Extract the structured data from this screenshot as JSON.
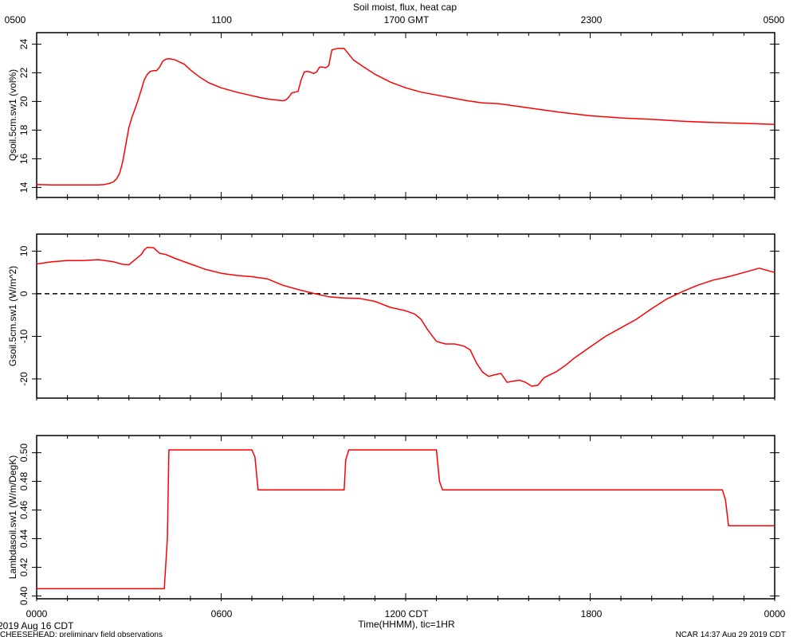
{
  "title": "Soil moist, flux, heat cap",
  "top_axis": {
    "labels": [
      "0500",
      "1100",
      "1700 GMT",
      "2300",
      "0500"
    ],
    "positions_hours": [
      0,
      6,
      12,
      18,
      24
    ]
  },
  "bottom_axis": {
    "labels": [
      "0000",
      "0600",
      "1200 CDT",
      "1800",
      "0000"
    ],
    "positions_hours": [
      0,
      6,
      12,
      18,
      24
    ],
    "xlabel": "Time(HHMM), tic=1HR"
  },
  "footer": {
    "date": "2019 Aug 16 CDT",
    "project": "CHEESEHEAD: preliminary field observations",
    "stamp": "NCAR 14:37 Aug 29 2019 CDT"
  },
  "colors": {
    "series": "#ff0000",
    "axis": "#000000",
    "zero_line": "#000000"
  },
  "chart_data": [
    {
      "type": "line",
      "ylabel": "Qsoil.5cm.sw1 (vol%)",
      "ylim": [
        13.3,
        24.8
      ],
      "yticks": [
        14,
        16,
        18,
        20,
        22,
        24
      ],
      "xlim": [
        0,
        24
      ],
      "series": [
        {
          "x": [
            0,
            0.5,
            1,
            1.5,
            2,
            2.1,
            2.2,
            2.4,
            2.5,
            2.6,
            2.7,
            2.8,
            2.9,
            3.0,
            3.1,
            3.2,
            3.3,
            3.4,
            3.5,
            3.6,
            3.7,
            3.8,
            3.9,
            4.0,
            4.1,
            4.2,
            4.3,
            4.4,
            4.5,
            4.6,
            4.7,
            4.8,
            5.0,
            5.3,
            5.6,
            6.0,
            6.5,
            7.0,
            7.3,
            7.6,
            7.8,
            8.0,
            8.1,
            8.2,
            8.3,
            8.4,
            8.5,
            8.6,
            8.7,
            8.8,
            8.9,
            9.0,
            9.1,
            9.2,
            9.3,
            9.4,
            9.5,
            9.6,
            9.8,
            10.0,
            10.3,
            10.6,
            11.0,
            11.5,
            12.0,
            12.5,
            13.0,
            13.5,
            14.0,
            14.5,
            15.0,
            15.5,
            16.0,
            17.0,
            18.0,
            19.0,
            20.0,
            21.0,
            22.0,
            23.0,
            24.0
          ],
          "values": [
            14.2,
            14.18,
            14.17,
            14.17,
            14.18,
            14.19,
            14.2,
            14.3,
            14.4,
            14.6,
            15.0,
            15.8,
            17.0,
            18.2,
            18.9,
            19.5,
            20.1,
            20.8,
            21.5,
            21.9,
            22.1,
            22.15,
            22.15,
            22.4,
            22.8,
            22.95,
            22.98,
            22.95,
            22.9,
            22.8,
            22.7,
            22.6,
            22.2,
            21.7,
            21.3,
            20.95,
            20.65,
            20.4,
            20.25,
            20.15,
            20.1,
            20.05,
            20.1,
            20.3,
            20.6,
            20.65,
            20.7,
            21.5,
            22.05,
            22.1,
            22.05,
            21.95,
            22.05,
            22.4,
            22.4,
            22.35,
            22.5,
            23.6,
            23.7,
            23.7,
            22.9,
            22.45,
            21.9,
            21.35,
            20.95,
            20.65,
            20.45,
            20.25,
            20.05,
            19.9,
            19.85,
            19.7,
            19.55,
            19.25,
            19.0,
            18.85,
            18.75,
            18.62,
            18.53,
            18.47,
            18.4
          ]
        }
      ]
    },
    {
      "type": "line",
      "ylabel": "Gsoil.5cm.sw1 (W/m^2)",
      "ylim": [
        -24.5,
        14
      ],
      "yticks": [
        10,
        0,
        -10,
        -20
      ],
      "xlim": [
        0,
        24
      ],
      "zero_line": true,
      "series": [
        {
          "x": [
            0,
            0.5,
            1,
            1.5,
            2,
            2.5,
            2.8,
            3.0,
            3.2,
            3.4,
            3.5,
            3.6,
            3.8,
            4.0,
            4.2,
            4.5,
            5.0,
            5.5,
            6.0,
            6.5,
            7.0,
            7.5,
            8.0,
            8.5,
            9.0,
            9.5,
            10.0,
            10.5,
            11.0,
            11.5,
            12.0,
            12.3,
            12.5,
            12.7,
            13.0,
            13.3,
            13.6,
            13.9,
            14.1,
            14.3,
            14.5,
            14.7,
            14.9,
            15.1,
            15.3,
            15.5,
            15.7,
            15.9,
            16.1,
            16.3,
            16.5,
            16.7,
            16.9,
            17.2,
            17.5,
            18.0,
            18.5,
            19.0,
            19.5,
            20.0,
            20.5,
            21.0,
            21.5,
            22.0,
            22.5,
            23.0,
            23.5,
            24.0
          ],
          "values": [
            7.0,
            7.5,
            7.8,
            7.8,
            8.0,
            7.5,
            6.9,
            6.8,
            8.0,
            9.2,
            10.3,
            10.9,
            10.8,
            9.5,
            9.2,
            8.3,
            7.0,
            5.7,
            4.8,
            4.3,
            4.0,
            3.5,
            2.0,
            1.0,
            0.1,
            -0.7,
            -1.0,
            -1.1,
            -1.8,
            -3.2,
            -4.0,
            -4.8,
            -6.0,
            -8.3,
            -11.2,
            -11.8,
            -11.8,
            -12.3,
            -13.2,
            -16.2,
            -18.4,
            -19.4,
            -19.0,
            -18.7,
            -20.8,
            -20.5,
            -20.3,
            -20.8,
            -21.7,
            -21.5,
            -19.7,
            -19.0,
            -18.3,
            -16.8,
            -15.0,
            -12.5,
            -10.0,
            -8.0,
            -6.0,
            -3.5,
            -1.2,
            0.5,
            2.0,
            3.2,
            4.0,
            5.0,
            6.0,
            5.0
          ]
        }
      ]
    },
    {
      "type": "line",
      "ylabel": "Lambdasoil.sw1 (W/m/DegK)",
      "ylim": [
        0.398,
        0.512
      ],
      "yticks": [
        0.4,
        0.42,
        0.44,
        0.46,
        0.48,
        0.5
      ],
      "ytick_labels": [
        "0.40",
        "0.42",
        "0.44",
        "0.46",
        "0.48",
        "0.50"
      ],
      "xlim": [
        0,
        24
      ],
      "series": [
        {
          "x": [
            0,
            4.15,
            4.25,
            4.3,
            7.0,
            7.1,
            7.2,
            10.0,
            10.05,
            10.15,
            13.0,
            13.1,
            13.2,
            22.3,
            22.4,
            22.5,
            24.0
          ],
          "values": [
            0.405,
            0.405,
            0.44,
            0.502,
            0.502,
            0.497,
            0.474,
            0.474,
            0.495,
            0.502,
            0.502,
            0.48,
            0.474,
            0.474,
            0.467,
            0.449,
            0.449
          ]
        }
      ]
    }
  ]
}
